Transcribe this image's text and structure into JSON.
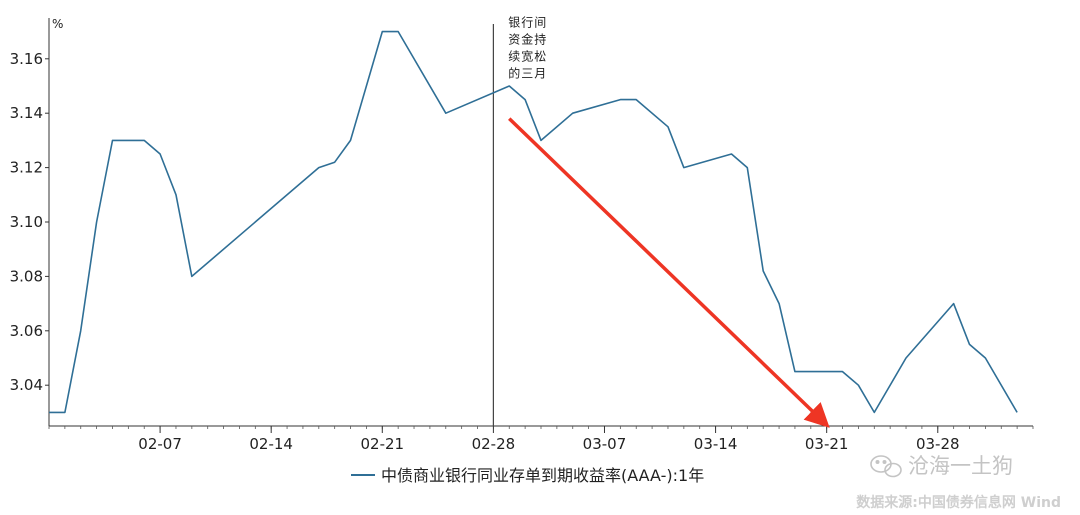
{
  "chart_data": {
    "type": "line",
    "ylabel": "%",
    "ylim": [
      3.025,
      3.175
    ],
    "yticks": [
      3.04,
      3.06,
      3.08,
      3.1,
      3.12,
      3.14,
      3.16
    ],
    "ytick_labels": [
      "3.04",
      "3.06",
      "3.08",
      "3.10",
      "3.12",
      "3.14",
      "3.16"
    ],
    "xlim": [
      "2019-01-31",
      "2019-04-03"
    ],
    "xticks": [
      "2019-02-07",
      "2019-02-14",
      "2019-02-21",
      "2019-02-28",
      "2019-03-07",
      "2019-03-14",
      "2019-03-21",
      "2019-03-28"
    ],
    "xtick_labels": [
      "02-07",
      "02-14",
      "02-21",
      "02-28",
      "03-07",
      "03-14",
      "03-21",
      "03-28"
    ],
    "grid": false,
    "legend_position": "bottom",
    "series": [
      {
        "name": "中债商业银行同业存单到期收益率(AAA-):1年",
        "color": "#2f6f96",
        "points": [
          [
            "2019-01-31",
            3.03
          ],
          [
            "2019-02-01",
            3.03
          ],
          [
            "2019-02-02",
            3.06
          ],
          [
            "2019-02-03",
            3.1
          ],
          [
            "2019-02-04",
            3.13
          ],
          [
            "2019-02-05",
            3.13
          ],
          [
            "2019-02-06",
            3.13
          ],
          [
            "2019-02-07",
            3.125
          ],
          [
            "2019-02-08",
            3.11
          ],
          [
            "2019-02-09",
            3.08
          ],
          [
            "2019-02-17",
            3.12
          ],
          [
            "2019-02-18",
            3.122
          ],
          [
            "2019-02-19",
            3.13
          ],
          [
            "2019-02-21",
            3.17
          ],
          [
            "2019-02-22",
            3.17
          ],
          [
            "2019-02-25",
            3.14
          ],
          [
            "2019-03-01",
            3.15
          ],
          [
            "2019-03-02",
            3.145
          ],
          [
            "2019-03-03",
            3.13
          ],
          [
            "2019-03-05",
            3.14
          ],
          [
            "2019-03-08",
            3.145
          ],
          [
            "2019-03-09",
            3.145
          ],
          [
            "2019-03-11",
            3.135
          ],
          [
            "2019-03-12",
            3.12
          ],
          [
            "2019-03-15",
            3.125
          ],
          [
            "2019-03-16",
            3.12
          ],
          [
            "2019-03-17",
            3.082
          ],
          [
            "2019-03-18",
            3.07
          ],
          [
            "2019-03-19",
            3.045
          ],
          [
            "2019-03-22",
            3.045
          ],
          [
            "2019-03-23",
            3.04
          ],
          [
            "2019-03-24",
            3.03
          ],
          [
            "2019-03-26",
            3.05
          ],
          [
            "2019-03-29",
            3.07
          ],
          [
            "2019-03-30",
            3.055
          ],
          [
            "2019-03-31",
            3.05
          ],
          [
            "2019-04-02",
            3.03
          ]
        ]
      }
    ],
    "annotations": [
      {
        "text_lines": [
          "银行间",
          "资金持",
          "续宽松",
          "的三月"
        ],
        "x": "2019-03-01",
        "y": 3.17
      }
    ],
    "marker_line": {
      "x": "2019-02-28",
      "color": "#444444"
    },
    "arrow": {
      "from": [
        "2019-03-01",
        3.138
      ],
      "to": [
        "2019-03-21",
        3.025
      ],
      "color": "#ee3524"
    }
  },
  "watermark": {
    "text": "沧海一土狗",
    "icon": "wechat-icon"
  },
  "source": {
    "text": "数据来源:中国债券信息网 Wind"
  }
}
